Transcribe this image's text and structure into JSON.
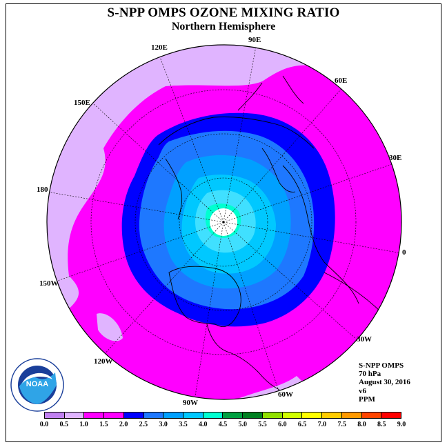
{
  "title": "S-NPP OMPS OZONE MIXING RATIO",
  "subtitle": "Northern Hemisphere",
  "longitude_labels": [
    "90E",
    "60E",
    "30E",
    "0",
    "30W",
    "60W",
    "90W",
    "120W",
    "150W",
    "180",
    "150E",
    "120E"
  ],
  "info": {
    "instrument": "S-NPP OMPS",
    "level": "70 hPa",
    "date": "August 30, 2016",
    "version": "v6",
    "units": "PPM"
  },
  "logo_text": "NOAA",
  "colorbar": {
    "ticks": [
      "0.0",
      "0.5",
      "1.0",
      "1.5",
      "2.0",
      "2.5",
      "3.0",
      "3.5",
      "4.0",
      "4.5",
      "5.0",
      "5.5",
      "6.0",
      "6.5",
      "7.0",
      "7.5",
      "8.0",
      "8.5",
      "9.0"
    ],
    "colors": [
      "#c080f0",
      "#e0b4ff",
      "#ff00ff",
      "#ff00ff",
      "#0000ff",
      "#1e78ff",
      "#00a0ff",
      "#00c8ff",
      "#00ffd0",
      "#00a040",
      "#008020",
      "#90e000",
      "#d0ff00",
      "#ffff00",
      "#ffcc00",
      "#ff9900",
      "#ff4400",
      "#ff0000",
      "#996633"
    ]
  },
  "contour_colors": {
    "band_0_5": "#e0b4ff",
    "band_1_0": "#ff00ff",
    "band_2_0": "#0000ff",
    "band_2_5": "#1e78ff",
    "band_3_0": "#00a0ff",
    "band_3_5": "#00c8ff",
    "band_4_0": "#00ffd0",
    "no_data": "#ffffff"
  }
}
